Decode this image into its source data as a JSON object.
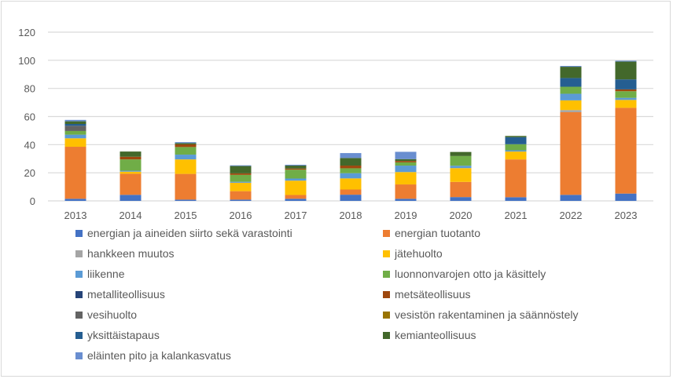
{
  "chart_data": {
    "type": "bar",
    "stacked": true,
    "title": "",
    "xlabel": "",
    "ylabel": "",
    "ylim": [
      0,
      120
    ],
    "yticks": [
      0,
      20,
      40,
      60,
      80,
      100,
      120
    ],
    "grid": true,
    "legend_position": "bottom",
    "categories": [
      "2013",
      "2014",
      "2015",
      "2016",
      "2017",
      "2018",
      "2019",
      "2020",
      "2021",
      "2022",
      "2023"
    ],
    "series": [
      {
        "name": "energian ja aineiden siirto sekä varastointi",
        "color": "#4472C4",
        "values": [
          1.5,
          4.3,
          0.9,
          0.9,
          1.5,
          4.4,
          1.5,
          2.7,
          2.6,
          4.3,
          5.2
        ]
      },
      {
        "name": "energian tuotanto",
        "color": "#ED7D31",
        "values": [
          37,
          15,
          18.3,
          6,
          2.7,
          3.7,
          10.2,
          10.8,
          26.9,
          58.8,
          61
        ]
      },
      {
        "name": "hankkeen muutos",
        "color": "#A5A5A5",
        "values": [
          0,
          0,
          0,
          0,
          0,
          0,
          0,
          0,
          0,
          1.5,
          0
        ]
      },
      {
        "name": "jätehuolto",
        "color": "#FFC000",
        "values": [
          6,
          1.5,
          10.3,
          6,
          10.2,
          7.9,
          8.8,
          9.8,
          5.6,
          6.9,
          5.6
        ]
      },
      {
        "name": "liikenne",
        "color": "#5B9BD5",
        "values": [
          2.6,
          0.7,
          3.4,
          0.7,
          1.5,
          3.7,
          4.6,
          1.7,
          0.9,
          4.7,
          1.5
        ]
      },
      {
        "name": "luonnonvarojen otto ja käsittely",
        "color": "#70AD47",
        "values": [
          2.6,
          8,
          5.4,
          4.9,
          6.3,
          3.5,
          2.3,
          6.9,
          4.3,
          5,
          4.7
        ]
      },
      {
        "name": "metalliteollisuus",
        "color": "#264478",
        "values": [
          0,
          0,
          0,
          0,
          0,
          0,
          0,
          0,
          0,
          0,
          0
        ]
      },
      {
        "name": "metsäteollisuus",
        "color": "#9E480E",
        "values": [
          0,
          1.9,
          1.9,
          1.1,
          0.8,
          1.9,
          1,
          0,
          0,
          0,
          1.3
        ]
      },
      {
        "name": "vesihuolto",
        "color": "#636363",
        "values": [
          3.7,
          0,
          0,
          0,
          0,
          0,
          0,
          0,
          0,
          0,
          0
        ]
      },
      {
        "name": "vesistön rakentaminen ja säännöstely",
        "color": "#997300",
        "values": [
          0,
          0,
          0,
          0,
          0,
          0,
          0,
          0,
          0,
          0,
          0
        ]
      },
      {
        "name": "yksittäistapaus",
        "color": "#255E91",
        "values": [
          1.3,
          0,
          0,
          0,
          0,
          0,
          0,
          0,
          5,
          6.2,
          7.1
        ]
      },
      {
        "name": "kemianteollisuus",
        "color": "#43682B",
        "values": [
          1.9,
          3.7,
          0.9,
          5.2,
          2.1,
          5.4,
          1.3,
          2.9,
          0.9,
          8,
          12.7
        ]
      },
      {
        "name": "eläinten pito ja kalankasvatus",
        "color": "#698ED0",
        "values": [
          1,
          0,
          0.7,
          0.5,
          0.6,
          3.5,
          5.2,
          0,
          0,
          0.6,
          0.6
        ]
      }
    ]
  }
}
